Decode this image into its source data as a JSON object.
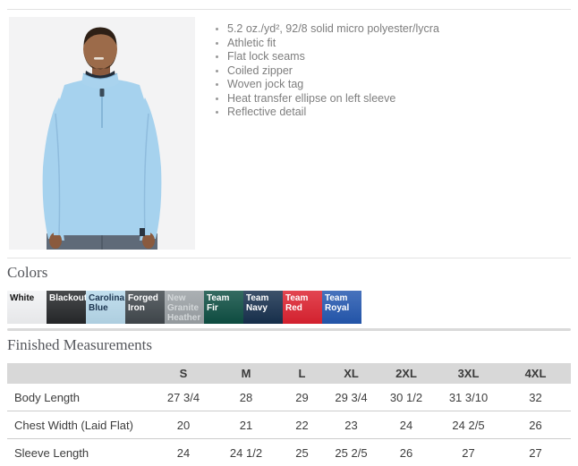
{
  "product": {
    "features": [
      "5.2 oz./yd², 92/8 solid micro polyester/lycra",
      "Athletic fit",
      "Flat lock seams",
      "Coiled zipper",
      "Woven jock tag",
      "Heat transfer ellipse on left sleeve",
      "Reflective detail"
    ]
  },
  "colors": {
    "heading": "Colors",
    "swatches": [
      {
        "label": "White",
        "bg": "#f2f3f5",
        "fg": "#111111"
      },
      {
        "label": "Blackout",
        "bg": "#26282a",
        "fg": "#ffffff"
      },
      {
        "label": "Carolina Blue",
        "bg": "#b7d9eb",
        "fg": "#1c3550"
      },
      {
        "label": "Forged Iron",
        "bg": "#41484d",
        "fg": "#ffffff"
      },
      {
        "label": "New Granite Heather",
        "bg": "#9ba1a5",
        "fg": "#d3d7d9"
      },
      {
        "label": "Team Fir",
        "bg": "#0e4f43",
        "fg": "#ffffff"
      },
      {
        "label": "Team Navy",
        "bg": "#17304e",
        "fg": "#ffffff"
      },
      {
        "label": "Team Red",
        "bg": "#dd2230",
        "fg": "#ffffff"
      },
      {
        "label": "Team Royal",
        "bg": "#2458b0",
        "fg": "#ffffff"
      }
    ]
  },
  "measurements": {
    "heading": "Finished Measurements",
    "columns": [
      "",
      "S",
      "M",
      "L",
      "XL",
      "2XL",
      "3XL",
      "4XL"
    ],
    "rows": [
      {
        "label": "Body Length",
        "values": [
          "27 3/4",
          "28",
          "29",
          "29 3/4",
          "30 1/2",
          "31 3/10",
          "32"
        ]
      },
      {
        "label": "Chest Width (Laid Flat)",
        "values": [
          "20",
          "21",
          "22",
          "23",
          "24",
          "24 2/5",
          "26"
        ]
      },
      {
        "label": "Sleeve Length",
        "values": [
          "24",
          "24 1/2",
          "25",
          "25 2/5",
          "26",
          "27",
          "27"
        ]
      }
    ]
  },
  "illustration": {
    "photo_bg": "#f3f3f4",
    "shirt_blue": "#a6d2ee",
    "skin": "#9c6b4a",
    "jeans": "#5f6a78"
  }
}
